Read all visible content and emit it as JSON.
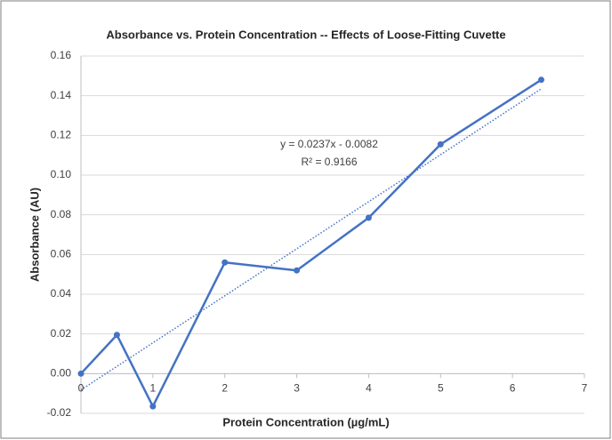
{
  "chart_data": {
    "type": "scatter-line",
    "title": "Absorbance vs. Protein Concentration -- Effects of Loose-Fitting Cuvette",
    "x_label": "Protein Concentration (µg/mL)",
    "y_label": "Absorbance (AU)",
    "x": [
      0,
      0.5,
      1,
      2,
      3,
      4,
      5,
      6.4
    ],
    "series": [
      {
        "name": "Absorbance",
        "color": "#4472c4",
        "values": [
          0,
          0.0195,
          -0.0165,
          0.056,
          0.052,
          0.0785,
          0.1155,
          0.148
        ]
      }
    ],
    "trendline": {
      "slope": 0.0237,
      "intercept": -0.0082,
      "equation": "y = 0.0237x - 0.0082",
      "r_squared": "R² = 0.9166"
    },
    "xlim": [
      0,
      7
    ],
    "xticks": [
      0,
      1,
      2,
      3,
      4,
      5,
      6,
      7
    ],
    "ylim": [
      -0.02,
      0.16
    ],
    "yticks": [
      -0.02,
      {
        "value": 0,
        "label": "0.00"
      },
      0.02,
      0.04,
      0.06,
      0.08,
      {
        "value": 0.1,
        "label": "0.10"
      },
      0.12,
      0.14,
      0.16
    ],
    "grid": true
  }
}
